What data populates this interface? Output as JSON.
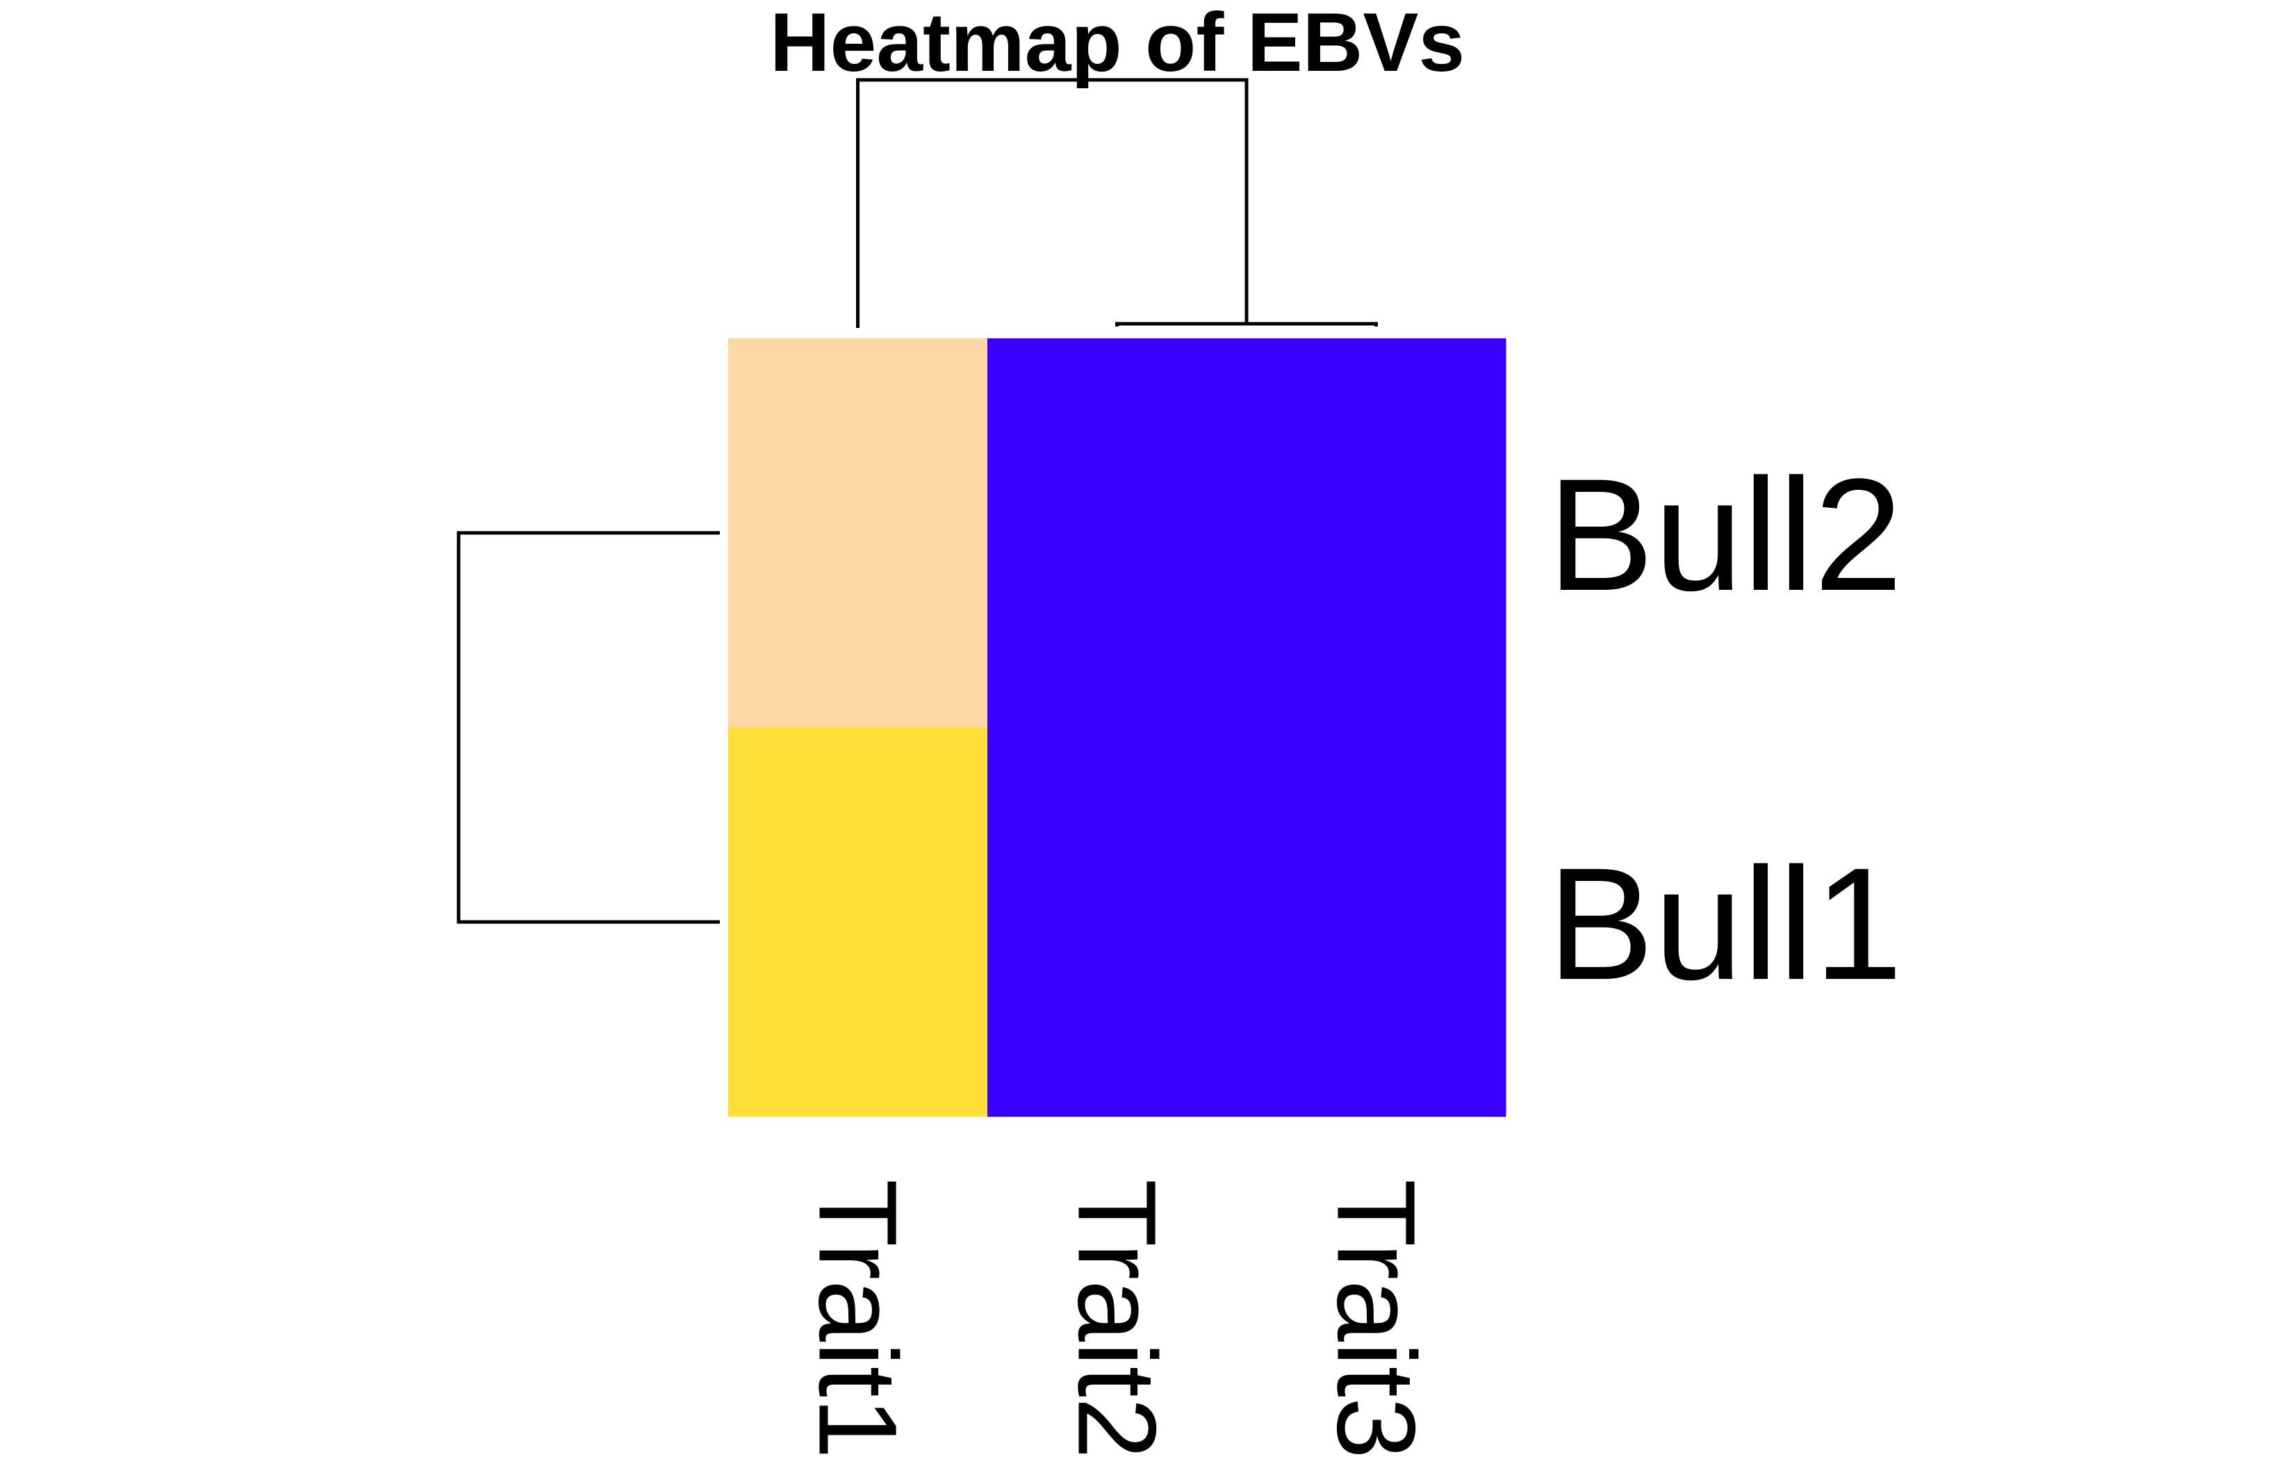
{
  "chart_data": {
    "type": "heatmap",
    "title": "Heatmap of EBVs",
    "rows": [
      "Bull2",
      "Bull1"
    ],
    "columns": [
      "Trait1",
      "Trait2",
      "Trait3"
    ],
    "cell_colors": [
      [
        "#FDD8A7",
        "#3A00FF",
        "#3A00FF"
      ],
      [
        "#FFDF37",
        "#3A00FF",
        "#3A00FF"
      ]
    ],
    "row_dendrogram": {
      "merge": [
        [
          "Bull2",
          "Bull1"
        ]
      ],
      "side": "left"
    },
    "column_dendrogram": {
      "merge": [
        [
          "Trait2",
          "Trait3"
        ],
        [
          "Trait1",
          "Trait2+Trait3"
        ]
      ],
      "side": "top"
    },
    "colors": {
      "low": "#3A00FF",
      "mid": "#FDD8A7",
      "high": "#FFDF37",
      "line": "#000000"
    }
  }
}
